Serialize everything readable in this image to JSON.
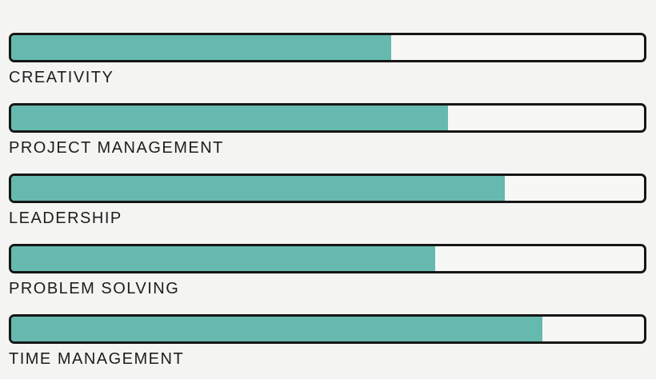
{
  "chart_data": {
    "type": "bar",
    "orientation": "horizontal",
    "title": "",
    "categories": [
      "CREATIVITY",
      "PROJECT MANAGEMENT",
      "LEADERSHIP",
      "PROBLEM SOLVING",
      "TIME MANAGEMENT"
    ],
    "values": [
      60,
      69,
      78,
      67,
      84
    ],
    "value_unit": "percent",
    "xlim": [
      0,
      100
    ],
    "grid": false,
    "legend": false,
    "value_labels_shown": false,
    "colors": {
      "bar_fill": "#66b9ae",
      "bar_track": "#f7f7f5",
      "bar_border": "#161616",
      "page_background": "#f4f4f2",
      "label_text": "#1d1d1d"
    }
  }
}
